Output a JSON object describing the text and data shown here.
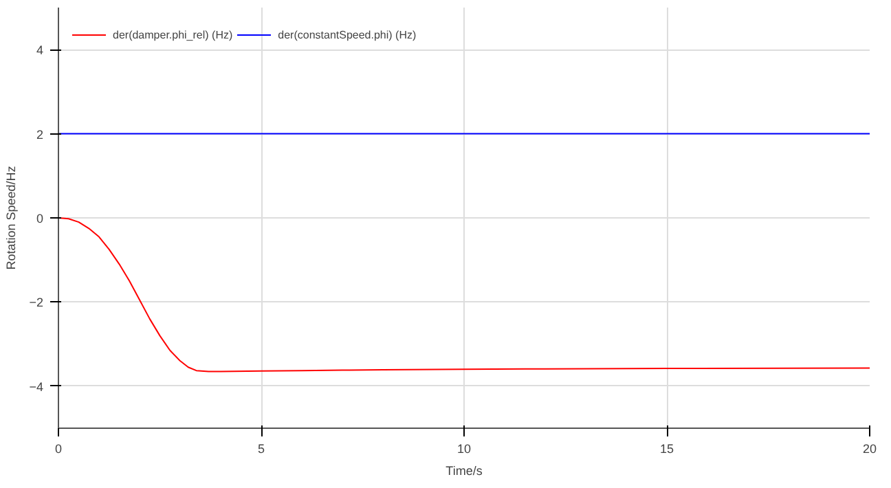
{
  "chart_data": {
    "type": "line",
    "xlabel": "Time/s",
    "ylabel": "Rotation Speed/Hz",
    "xlim": [
      0,
      20
    ],
    "ylim": [
      -5,
      5
    ],
    "xticks": [
      0,
      5,
      10,
      15,
      20
    ],
    "yticks": [
      -4,
      -2,
      0,
      2,
      4
    ],
    "grid": true,
    "legend": "top left",
    "line_style": "solid",
    "series": [
      {
        "name": "der(damper.phi_rel) (Hz)",
        "color": "#ff0000",
        "x": [
          0,
          0.25,
          0.5,
          0.75,
          1,
          1.25,
          1.5,
          1.75,
          2,
          2.25,
          2.5,
          2.75,
          3,
          3.2,
          3.4,
          3.7,
          4,
          5,
          6,
          7,
          8,
          10,
          12,
          15,
          20
        ],
        "values": [
          0,
          -0.02,
          -0.1,
          -0.25,
          -0.45,
          -0.75,
          -1.1,
          -1.5,
          -1.95,
          -2.4,
          -2.8,
          -3.15,
          -3.4,
          -3.55,
          -3.63,
          -3.65,
          -3.65,
          -3.64,
          -3.63,
          -3.62,
          -3.61,
          -3.6,
          -3.59,
          -3.58,
          -3.57
        ]
      },
      {
        "name": "der(constantSpeed.phi) (Hz)",
        "color": "#0000ff",
        "x": [
          0,
          20
        ],
        "values": [
          2,
          2
        ]
      }
    ]
  }
}
